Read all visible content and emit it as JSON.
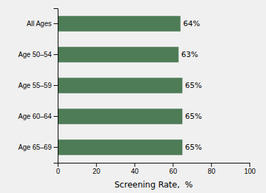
{
  "chart_data": {
    "type": "bar",
    "orientation": "horizontal",
    "categories": [
      "All Ages",
      "Age 50–54",
      "Age 55–59",
      "Age 60–64",
      "Age 65–69"
    ],
    "values": [
      64,
      63,
      65,
      65,
      65
    ],
    "value_labels": [
      "64%",
      "63%",
      "65%",
      "65%",
      "65%"
    ],
    "data_labels": true,
    "color": "#4e7c57",
    "xlabel": "Screening Rate,  %",
    "xlim": [
      0,
      100
    ],
    "xticks": [
      0,
      20,
      40,
      60,
      80,
      100
    ],
    "grid": false
  }
}
